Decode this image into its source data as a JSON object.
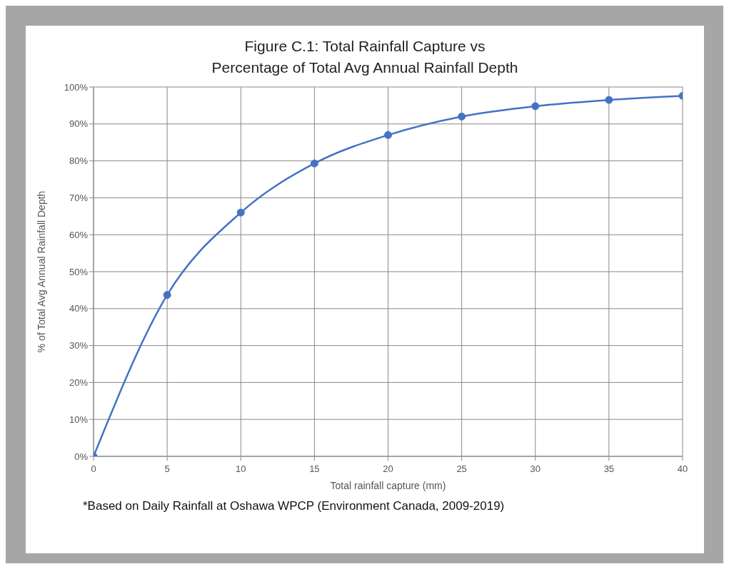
{
  "chart_data": {
    "type": "line",
    "title": "Figure C.1: Total Rainfall Capture vs\nPercentage of Total Avg Annual Rainfall Depth",
    "xlabel": "Total rainfall capture (mm)",
    "ylabel": "% of Total Avg Annual Rainfall Depth",
    "x": [
      0,
      5,
      10,
      15,
      20,
      25,
      30,
      35,
      40
    ],
    "series": [
      {
        "color": "#4472c4",
        "values": [
          0,
          43.7,
          66.0,
          79.3,
          87.0,
          92.0,
          94.8,
          96.5,
          97.6
        ]
      }
    ],
    "xlim": [
      0,
      40
    ],
    "xticks": [
      0,
      5,
      10,
      15,
      20,
      25,
      30,
      35,
      40
    ],
    "ylim": [
      0,
      100
    ],
    "yticks": [
      {
        "value": 0,
        "label": "0%"
      },
      {
        "value": 10,
        "label": "10%"
      },
      {
        "value": 20,
        "label": "20%"
      },
      {
        "value": 30,
        "label": "30%"
      },
      {
        "value": 40,
        "label": "40%"
      },
      {
        "value": 50,
        "label": "50%"
      },
      {
        "value": 60,
        "label": "60%"
      },
      {
        "value": 70,
        "label": "70%"
      },
      {
        "value": 80,
        "label": "80%"
      },
      {
        "value": 90,
        "label": "90%"
      },
      {
        "value": 100,
        "label": "100%"
      }
    ],
    "grid": true,
    "marker": "circle",
    "line_style": "solid",
    "annotations": [
      "*Based on Daily Rainfall at Oshawa WPCP (Environment Canada, 2009-2019)"
    ]
  }
}
